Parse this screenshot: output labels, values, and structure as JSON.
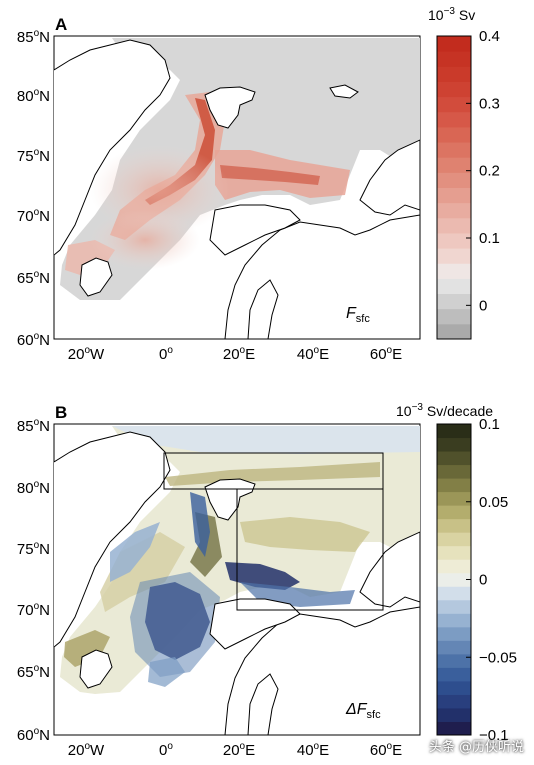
{
  "panels": [
    {
      "letter": "A",
      "variable": "F",
      "variable_sub": "sfc",
      "variable_prefix": "",
      "colorbar": {
        "title_base": "10",
        "title_exp": "−3",
        "title_unit": " Sv",
        "ticks": [
          "0.4",
          "0.3",
          "0.2",
          "0.1",
          "0"
        ],
        "tick_values": [
          0.4,
          0.3,
          0.2,
          0.1,
          0.0
        ],
        "min": -0.05,
        "max": 0.4,
        "colors": [
          "#aaaaaa",
          "#bdbdbd",
          "#d0d0d0",
          "#e2e2e2",
          "#efe6e4",
          "#f0d6d0",
          "#eec8c0",
          "#ebbab0",
          "#e8aca0",
          "#e59e90",
          "#e29080",
          "#df8270",
          "#dc7462",
          "#d96654",
          "#d65848",
          "#d24c3c",
          "#ce4232",
          "#ca3a2a",
          "#c63324",
          "#c22c1e"
        ]
      },
      "land_color": "#d3d3d3",
      "map_bg": "#ffffff"
    },
    {
      "letter": "B",
      "variable": "F",
      "variable_sub": "sfc",
      "variable_prefix": "Δ",
      "colorbar": {
        "title_base": "10",
        "title_exp": "−3",
        "title_unit": " Sv/decade",
        "ticks": [
          "0.1",
          "0.05",
          "0",
          "−0.05",
          "−0.1"
        ],
        "tick_values": [
          0.1,
          0.05,
          0.0,
          -0.05,
          -0.1
        ],
        "min": -0.1,
        "max": 0.1,
        "colors": [
          "#1f1e4e",
          "#22306a",
          "#293f7e",
          "#2e4e8e",
          "#3a5f9c",
          "#4d72a8",
          "#6486b5",
          "#7c9cc3",
          "#97b2d1",
          "#b4c8de",
          "#d2deea",
          "#ebeee9",
          "#eeecd6",
          "#e6e2bd",
          "#d9d3a2",
          "#c8c187",
          "#b3ad6d",
          "#9b9658",
          "#827f46",
          "#696838",
          "#50512b",
          "#3a3d20",
          "#2a2e18"
        ]
      },
      "land_color": "#e6e6cf",
      "map_bg": "#ffffff"
    }
  ],
  "axes": {
    "y_ticks": [
      {
        "deg": "85",
        "dir": "N"
      },
      {
        "deg": "80",
        "dir": "N"
      },
      {
        "deg": "75",
        "dir": "N"
      },
      {
        "deg": "70",
        "dir": "N"
      },
      {
        "deg": "65",
        "dir": "N"
      },
      {
        "deg": "60",
        "dir": "N"
      }
    ],
    "x_ticks": [
      {
        "deg": "20",
        "dir": "W"
      },
      {
        "deg": "0",
        "dir": ""
      },
      {
        "deg": "20",
        "dir": "E"
      },
      {
        "deg": "40",
        "dir": "E"
      },
      {
        "deg": "60",
        "dir": "E"
      }
    ],
    "degree_symbol": "o"
  },
  "boxes_panel_b": [
    {
      "name": "box-north",
      "lon": [
        0,
        60
      ],
      "lat": [
        80,
        83
      ]
    },
    {
      "name": "box-barents",
      "lon": [
        20,
        60
      ],
      "lat": [
        71,
        80
      ]
    }
  ],
  "watermark": "头条 @历侠听说"
}
